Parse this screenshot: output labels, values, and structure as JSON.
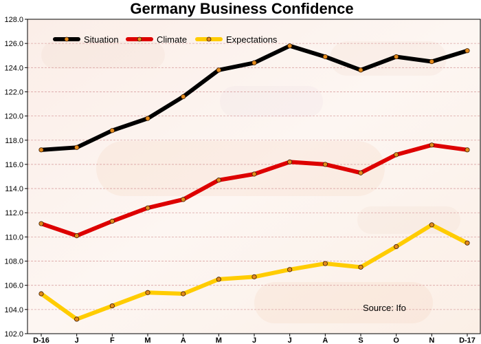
{
  "chart_data": {
    "type": "line",
    "title": "Germany Business Confidence",
    "xlabel": "",
    "ylabel": "",
    "categories": [
      "D-16",
      "J",
      "F",
      "M",
      "A",
      "M",
      "J",
      "J",
      "A",
      "S",
      "O",
      "N",
      "D-17"
    ],
    "ylim": [
      102,
      128
    ],
    "yticks": [
      "102.0",
      "104.0",
      "106.0",
      "108.0",
      "110.0",
      "112.0",
      "114.0",
      "116.0",
      "118.0",
      "120.0",
      "122.0",
      "124.0",
      "126.0",
      "128.0"
    ],
    "grid": true,
    "legend_position": "top-left",
    "series": [
      {
        "name": "Situation",
        "color": "#000000",
        "values": [
          117.2,
          117.4,
          118.8,
          119.8,
          121.6,
          123.8,
          124.4,
          125.8,
          124.9,
          123.8,
          124.9,
          124.5,
          125.4
        ]
      },
      {
        "name": "Climate",
        "color": "#dd0000",
        "values": [
          111.1,
          110.1,
          111.3,
          112.4,
          113.1,
          114.7,
          115.2,
          116.2,
          116.0,
          115.3,
          116.8,
          117.6,
          117.2
        ]
      },
      {
        "name": "Expectations",
        "color": "#ffcc00",
        "values": [
          105.3,
          103.2,
          104.3,
          105.4,
          105.3,
          106.5,
          106.7,
          107.3,
          107.8,
          107.5,
          109.2,
          111.0,
          109.5
        ]
      }
    ],
    "marker_color": "#e38b1c",
    "annotation": "Source: Ifo"
  }
}
